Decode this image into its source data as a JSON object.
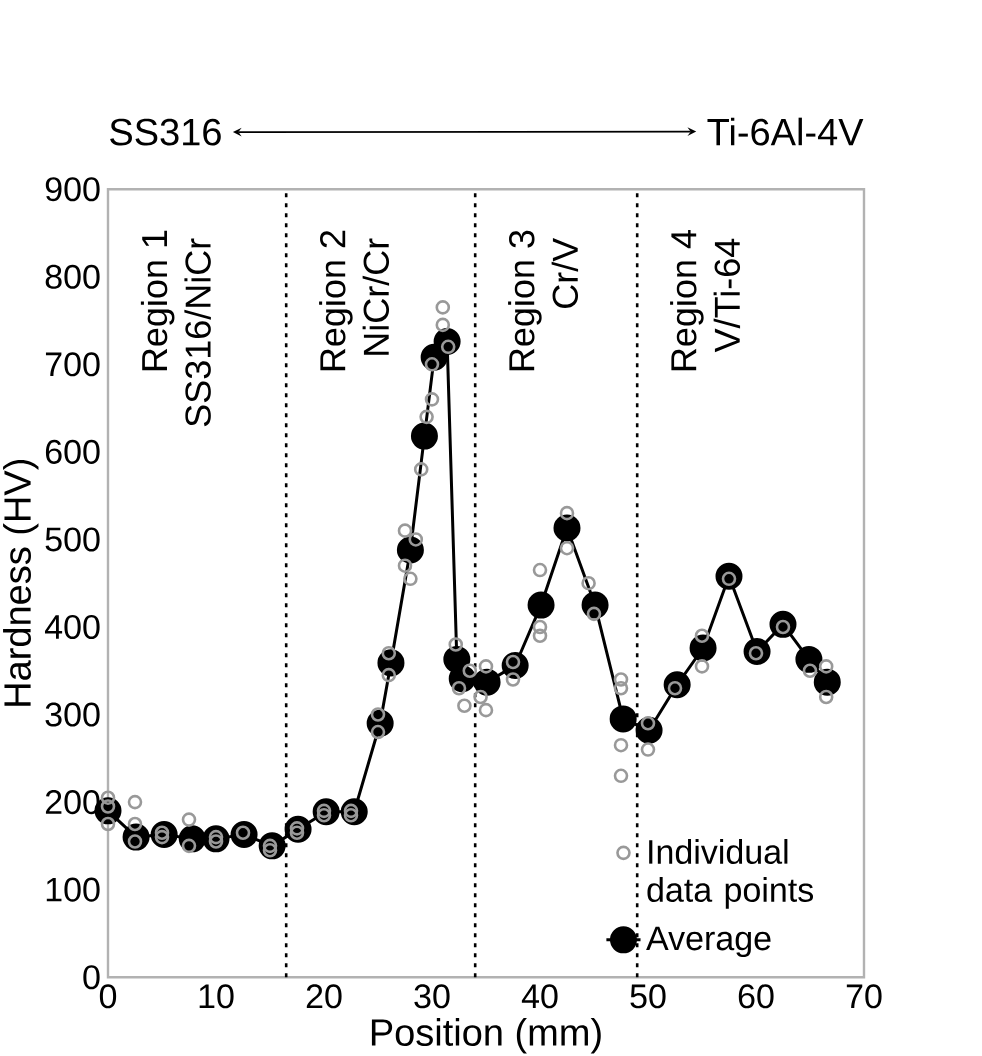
{
  "chart_data": {
    "type": "line",
    "xlabel": "Position (mm)",
    "ylabel": "Hardness (HV)",
    "xlim": [
      0,
      70
    ],
    "ylim": [
      0,
      900
    ],
    "xticks": [
      0,
      10,
      20,
      30,
      40,
      50,
      60,
      70
    ],
    "yticks": [
      0,
      100,
      200,
      300,
      400,
      500,
      600,
      700,
      800,
      900
    ],
    "grid": false,
    "marker": "circle",
    "legend": "bottom right",
    "annotations": [
      "SS316",
      "Ti-6Al-4V",
      "Region 1",
      "SS316/NiCr",
      "Region 2",
      "NiCr/Cr",
      "Region 3",
      "Cr/V",
      "Region 4",
      "V/Ti-64"
    ],
    "ref_lines": [
      {
        "axis": "x",
        "value": 16.5,
        "line_style": "dotted",
        "color": "#000000"
      },
      {
        "axis": "x",
        "value": 34,
        "line_style": "dotted",
        "color": "#000000"
      },
      {
        "axis": "x",
        "value": 49,
        "line_style": "dotted",
        "color": "#000000"
      }
    ],
    "series": [
      {
        "name": "Individual data points",
        "type": "scatter",
        "color": "#999999",
        "x": [
          0,
          0,
          0,
          2.5,
          2.5,
          2.5,
          5,
          5,
          7.5,
          7.5,
          10,
          10,
          12.5,
          15,
          15,
          17.5,
          17.5,
          20,
          20,
          22.5,
          22.5,
          25,
          25,
          26,
          26,
          27.5,
          27.5,
          28,
          28.5,
          29,
          29.5,
          30,
          30,
          31,
          31,
          31.5,
          32.2,
          32.5,
          33,
          33.5,
          34.5,
          35,
          35,
          37.5,
          37.5,
          40,
          40,
          40,
          42.5,
          42.5,
          44.5,
          45,
          47.5,
          47.5,
          47.5,
          47.5,
          50,
          50,
          52.5,
          55,
          55,
          57.5,
          60,
          62.5,
          65,
          66.5,
          66.5
        ],
        "values": [
          205,
          175,
          195,
          200,
          175,
          155,
          165,
          160,
          180,
          150,
          160,
          155,
          165,
          150,
          145,
          170,
          165,
          190,
          185,
          190,
          185,
          300,
          280,
          370,
          345,
          510,
          470,
          455,
          500,
          580,
          640,
          700,
          660,
          765,
          745,
          720,
          380,
          330,
          310,
          350,
          320,
          305,
          355,
          360,
          340,
          465,
          400,
          390,
          530,
          490,
          450,
          415,
          340,
          330,
          265,
          230,
          260,
          290,
          330,
          390,
          355,
          455,
          370,
          400,
          350,
          355,
          320
        ]
      },
      {
        "name": "Average",
        "type": "line",
        "color": "#000000",
        "x": [
          0,
          2.6,
          5.2,
          7.8,
          10,
          12.6,
          15.2,
          17.6,
          20.2,
          22.8,
          25.2,
          26.2,
          28,
          29.3,
          30.2,
          31.4,
          32.3,
          32.8,
          35.1,
          37.7,
          40.1,
          42.5,
          45.1,
          47.7,
          50.1,
          52.7,
          55.1,
          57.5,
          60.1,
          62.5,
          64.9,
          66.6
        ],
        "values": [
          190,
          160,
          163,
          158,
          158,
          163,
          150,
          169,
          189,
          189,
          290,
          359,
          488,
          618,
          708,
          726,
          363,
          341,
          337,
          356,
          425,
          513,
          425,
          295,
          282,
          334,
          376,
          458,
          372,
          403,
          363,
          337
        ]
      }
    ]
  }
}
